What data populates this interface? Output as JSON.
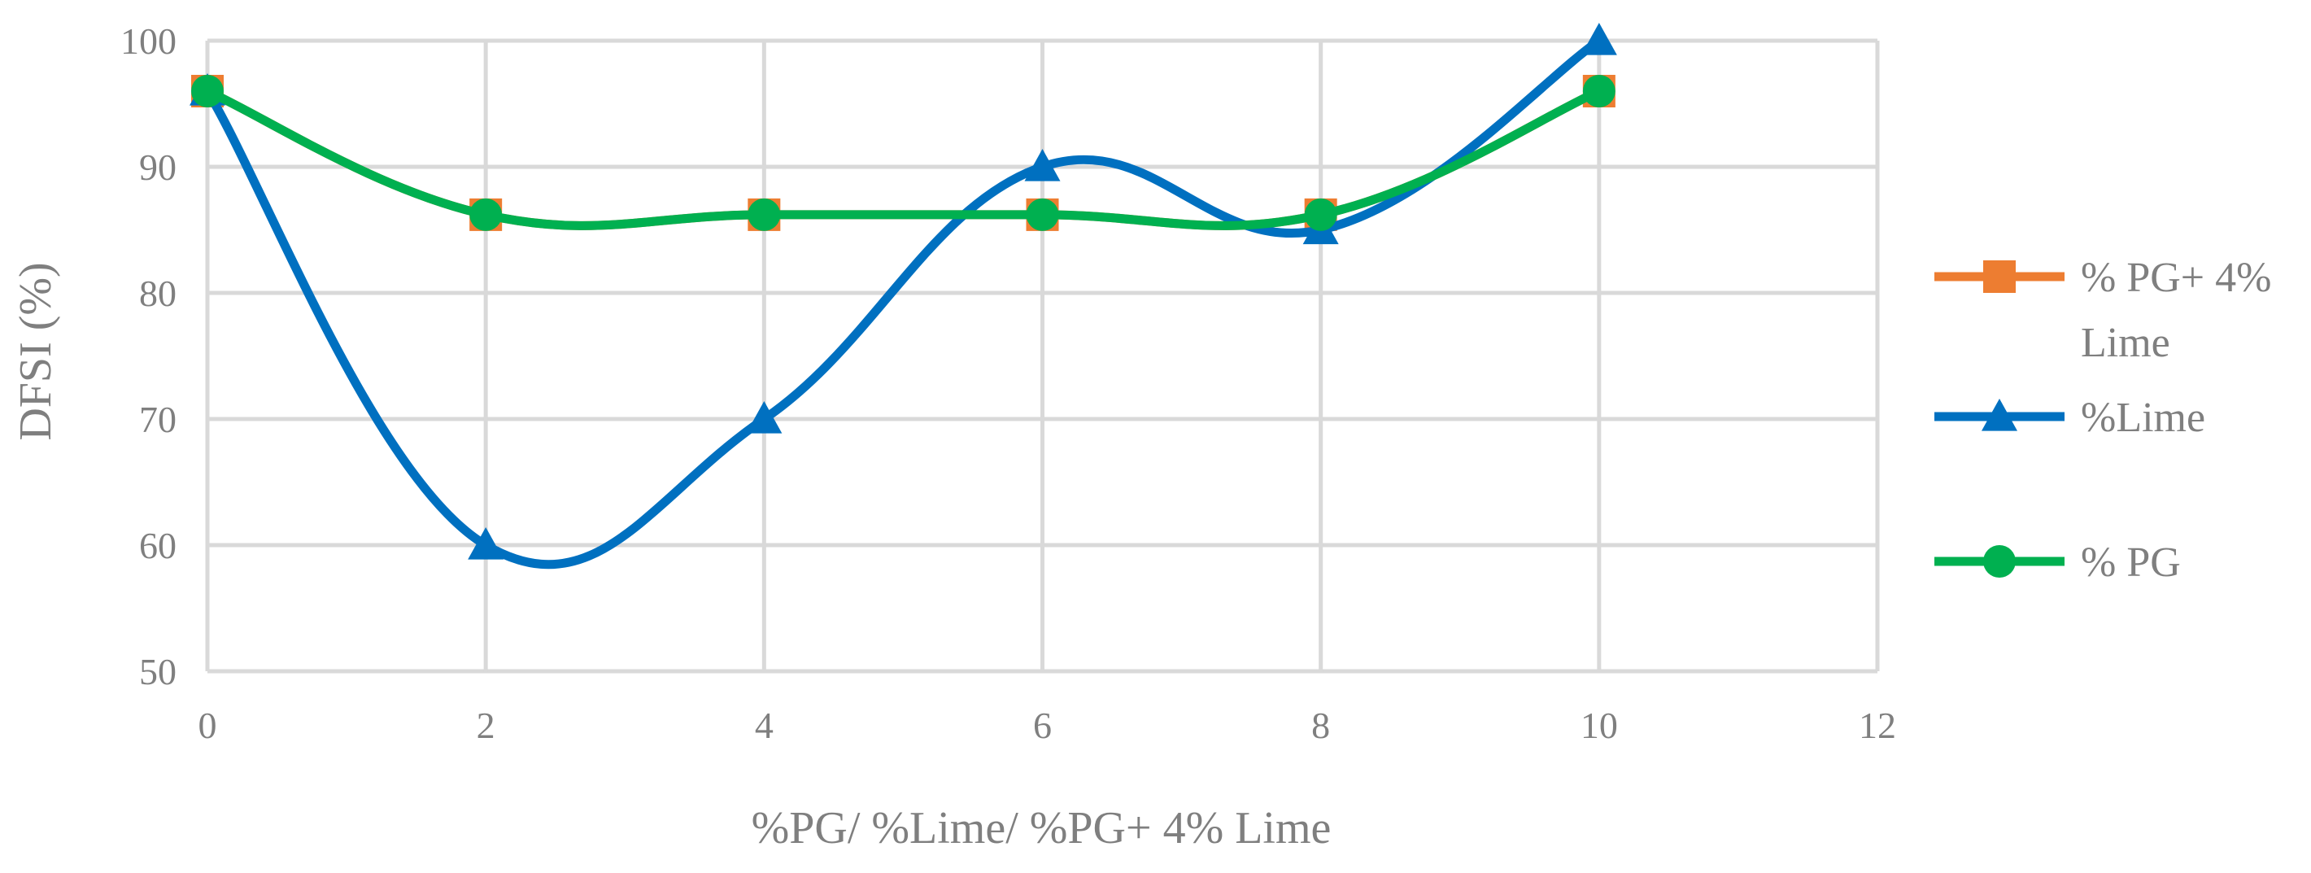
{
  "chart_data": {
    "type": "line",
    "title": "",
    "xlabel": "%PG/ %Lime/ %PG+ 4% Lime",
    "ylabel": "DFSI (%)",
    "xlim": [
      0,
      12
    ],
    "ylim": [
      50,
      100
    ],
    "x_ticks": [
      0,
      2,
      4,
      6,
      8,
      10,
      12
    ],
    "y_ticks": [
      50,
      60,
      70,
      80,
      90,
      100
    ],
    "grid": true,
    "smoothed": true,
    "legend_position": "right",
    "series": [
      {
        "name": "% PG+ 4% Lime",
        "name_lines": [
          "% PG+ 4%",
          "Lime"
        ],
        "color": "#ed7d31",
        "marker": "square",
        "x": [
          0,
          2,
          4,
          6,
          8,
          10
        ],
        "y": [
          96,
          86.2,
          86.2,
          86.2,
          86.2,
          96
        ]
      },
      {
        "name": "%Lime",
        "name_lines": [
          "%Lime"
        ],
        "color": "#0070c0",
        "marker": "triangle",
        "x": [
          0,
          2,
          4,
          6,
          8,
          10
        ],
        "y": [
          96,
          60,
          70,
          90,
          85,
          100
        ]
      },
      {
        "name": "% PG",
        "name_lines": [
          "% PG"
        ],
        "color": "#00b050",
        "marker": "circle",
        "x": [
          0,
          2,
          4,
          6,
          8,
          10
        ],
        "y": [
          96,
          86.2,
          86.2,
          86.2,
          86.2,
          96
        ]
      }
    ]
  }
}
